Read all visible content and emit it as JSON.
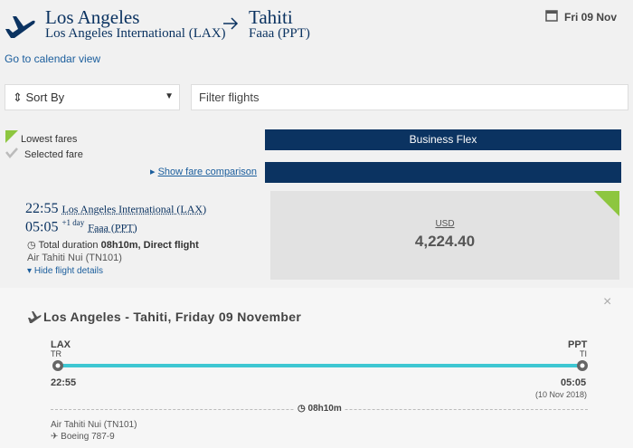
{
  "header": {
    "origin_city": "Los Angeles",
    "origin_airport": "Los Angeles International (LAX)",
    "destination_city": "Tahiti",
    "destination_airport": "Faaa (PPT)",
    "date": "Fri 09 Nov"
  },
  "calendar_link": "Go to calendar view",
  "toolbar": {
    "sort": "Sort By",
    "filter": "Filter flights"
  },
  "legend": {
    "lowest": "Lowest fares",
    "selected": "Selected fare"
  },
  "fare_comparison_link": "Show fare comparison",
  "fare_column": "Business Flex",
  "flight": {
    "departure_time": "22:55",
    "departure_airport": "Los Angeles International (LAX)",
    "arrival_time": "05:05",
    "day_offset": "+1 day",
    "arrival_airport": "Faaa (PPT)",
    "duration_label": "Total duration",
    "duration": "08h10m, Direct flight",
    "carrier": "Air Tahiti Nui (TN101)",
    "details_link": "Hide flight details"
  },
  "price": {
    "currency": "USD",
    "amount": "4,224.40"
  },
  "details": {
    "title": "Los Angeles - Tahiti, Friday 09 November",
    "from_code": "LAX",
    "from_terminal": "TR",
    "to_code": "PPT",
    "to_terminal": "TI",
    "departure_time": "22:55",
    "arrival_time": "05:05",
    "arrival_date": "(10 Nov 2018)",
    "duration": "08h10m",
    "carrier": "Air Tahiti Nui (TN101)",
    "aircraft": "Boeing 787-9"
  }
}
